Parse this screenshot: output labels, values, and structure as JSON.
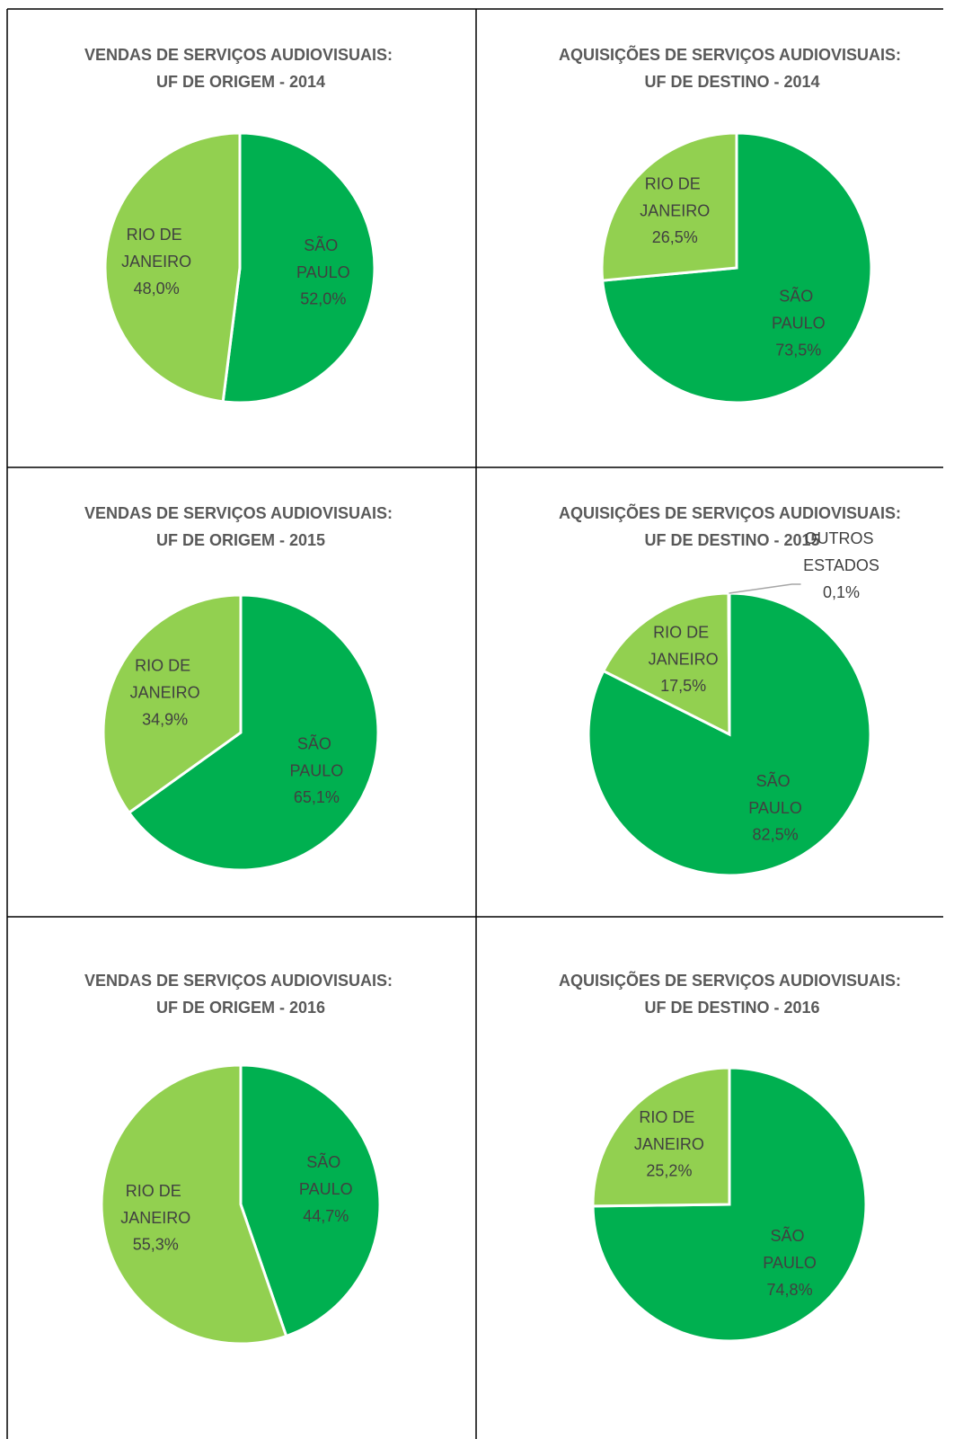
{
  "chart_data": [
    {
      "type": "pie",
      "title": "VENDAS DE SERVIÇOS AUDIOVISUAIS: UF DE ORIGEM - 2014",
      "categories": [
        "SÃO PAULO",
        "RIO DE JANEIRO"
      ],
      "values": [
        52.0,
        48.0
      ],
      "value_labels": [
        "52,0%",
        "48,0%"
      ],
      "colors": [
        "#00b050",
        "#92d050"
      ]
    },
    {
      "type": "pie",
      "title": "AQUISIÇÕES DE SERVIÇOS AUDIOVISUAIS: UF DE DESTINO - 2014",
      "categories": [
        "SÃO PAULO",
        "RIO DE JANEIRO"
      ],
      "values": [
        73.5,
        26.5
      ],
      "value_labels": [
        "73,5%",
        "26,5%"
      ],
      "colors": [
        "#00b050",
        "#92d050"
      ]
    },
    {
      "type": "pie",
      "title": "VENDAS DE SERVIÇOS AUDIOVISUAIS: UF DE ORIGEM - 2015",
      "categories": [
        "SÃO PAULO",
        "RIO DE JANEIRO"
      ],
      "values": [
        65.1,
        34.9
      ],
      "value_labels": [
        "65,1%",
        "34,9%"
      ],
      "colors": [
        "#00b050",
        "#92d050"
      ]
    },
    {
      "type": "pie",
      "title": "AQUISIÇÕES DE SERVIÇOS AUDIOVISUAIS: UF DE DESTINO - 2015",
      "categories": [
        "SÃO PAULO",
        "RIO DE JANEIRO",
        "OUTROS ESTADOS"
      ],
      "values": [
        82.5,
        17.5,
        0.1
      ],
      "value_labels": [
        "82,5%",
        "17,5%",
        "0,1%"
      ],
      "colors": [
        "#00b050",
        "#92d050",
        "#a5a5a5"
      ]
    },
    {
      "type": "pie",
      "title": "VENDAS DE SERVIÇOS AUDIOVISUAIS: UF DE ORIGEM - 2016",
      "categories": [
        "SÃO PAULO",
        "RIO DE JANEIRO"
      ],
      "values": [
        44.7,
        55.3
      ],
      "value_labels": [
        "44,7%",
        "55,3%"
      ],
      "colors": [
        "#00b050",
        "#92d050"
      ]
    },
    {
      "type": "pie",
      "title": "AQUISIÇÕES DE SERVIÇOS AUDIOVISUAIS: UF DE DESTINO - 2016",
      "categories": [
        "SÃO PAULO",
        "RIO DE JANEIRO"
      ],
      "values": [
        74.8,
        25.2
      ],
      "value_labels": [
        "74,8%",
        "25,2%"
      ],
      "colors": [
        "#00b050",
        "#92d050"
      ]
    }
  ]
}
